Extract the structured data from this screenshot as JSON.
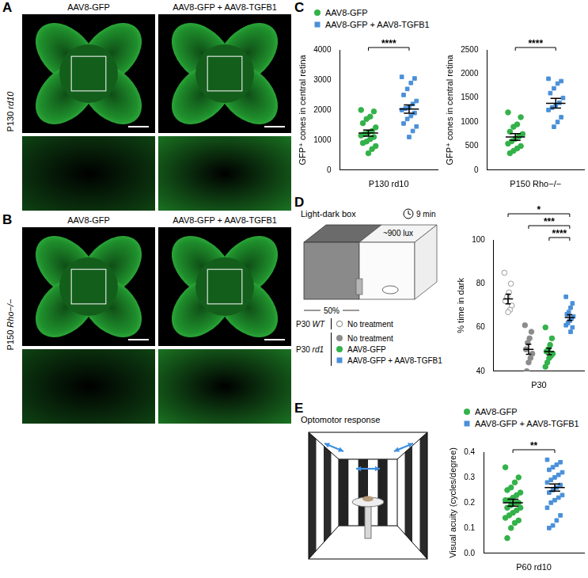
{
  "figure": {
    "panel_labels": [
      "A",
      "B",
      "C",
      "D",
      "E"
    ],
    "image_panels": [
      {
        "row_label": "P130 rd10",
        "columns": [
          "AAV8-GFP",
          "AAV8-GFP + AAV8-TGFB1"
        ]
      },
      {
        "row_label": "P150 Rho−/−",
        "columns": [
          "AAV8-GFP",
          "AAV8-GFP + AAV8-TGFB1"
        ]
      }
    ],
    "light_dark_box": {
      "title": "Light-dark box",
      "illuminance": "~900 lux",
      "duration": "9 min",
      "dark_fraction": "50%"
    },
    "optomotor": {
      "title": "Optomotor response"
    }
  },
  "chart_data": [
    {
      "type": "scatter",
      "y_label": "GFP⁺ cones in central retina",
      "x_label": "P130 rd10",
      "ylim": [
        0,
        4000
      ],
      "yticks": [
        0,
        1000,
        2000,
        3000,
        4000
      ],
      "grid": false,
      "tick_labels": "y",
      "legend": "top",
      "series": [
        {
          "name": "AAV8-GFP",
          "color": "#33b24a",
          "marker": "circle",
          "values": [
            2000,
            1950,
            1780,
            1700,
            1560,
            1420,
            1300,
            1250,
            1200,
            1150,
            1100,
            1030,
            950,
            900,
            800,
            700,
            560
          ],
          "mean": 1230,
          "sem": 105
        },
        {
          "name": "AAV8-GFP + AAV8-TGFB1",
          "color": "#4a90d9",
          "marker": "square",
          "values": [
            3100,
            3050,
            2900,
            2700,
            2500,
            2300,
            2200,
            2100,
            2050,
            2000,
            1900,
            1800,
            1700,
            1550,
            1450,
            1300,
            1100
          ],
          "mean": 2030,
          "sem": 140
        }
      ],
      "annotations": [
        {
          "from": 0,
          "to": 1,
          "label": "****"
        }
      ]
    },
    {
      "type": "scatter",
      "y_label": "GFP⁺ cones in central retina",
      "x_label": "P150 Rho−/−",
      "ylim": [
        0,
        2500
      ],
      "yticks": [
        0,
        500,
        1000,
        1500,
        2000,
        2500
      ],
      "grid": false,
      "tick_labels": "y",
      "series": [
        {
          "name": "AAV8-GFP",
          "color": "#33b24a",
          "marker": "circle",
          "values": [
            1200,
            1100,
            950,
            900,
            800,
            750,
            700,
            650,
            600,
            550,
            500,
            450,
            400,
            350
          ],
          "mean": 690,
          "sem": 70
        },
        {
          "name": "AAV8-GFP + AAV8-TGFB1",
          "color": "#4a90d9",
          "marker": "square",
          "values": [
            1900,
            1850,
            1800,
            1700,
            1600,
            1500,
            1400,
            1350,
            1300,
            1250,
            1100,
            1000,
            900
          ],
          "mean": 1390,
          "sem": 100
        }
      ],
      "annotations": [
        {
          "from": 0,
          "to": 1,
          "label": "****"
        }
      ]
    },
    {
      "type": "scatter",
      "y_label": "% time in dark",
      "x_label": "P30",
      "ylim": [
        40,
        100
      ],
      "yticks": [
        40,
        60,
        80,
        100
      ],
      "grid": false,
      "tick_labels": "y",
      "legend": "left",
      "series": [
        {
          "group": "P30 WT",
          "name": "No treatment",
          "color": "#9a9a9a",
          "marker": "open_circle",
          "values": [
            85,
            80,
            76,
            74,
            72,
            70,
            68,
            67
          ],
          "mean": 73,
          "sem": 2.2
        },
        {
          "group": "P30 rd1",
          "name": "No treatment",
          "color": "#8c8c8c",
          "marker": "circle",
          "values": [
            61,
            58,
            55,
            53,
            50,
            48,
            46,
            44,
            40
          ],
          "mean": 50,
          "sem": 2.3
        },
        {
          "group": "P30 rd1",
          "name": "AAV8-GFP",
          "color": "#33b24a",
          "marker": "circle",
          "values": [
            60,
            55,
            52,
            50,
            49,
            48,
            47,
            46,
            44,
            42
          ],
          "mean": 49,
          "sem": 1.5
        },
        {
          "group": "P30 rd1",
          "name": "AAV8-GFP + AAV8-TGFB1",
          "color": "#4a90d9",
          "marker": "square",
          "values": [
            74,
            71,
            69,
            67,
            66,
            65,
            64,
            63,
            62,
            61,
            60,
            58
          ],
          "mean": 64.5,
          "sem": 1.3
        }
      ],
      "annotations": [
        {
          "from": 0,
          "to": 3,
          "label": "*"
        },
        {
          "from": 1,
          "to": 3,
          "label": "***"
        },
        {
          "from": 2,
          "to": 3,
          "label": "****"
        }
      ]
    },
    {
      "type": "scatter",
      "y_label": "Visual acuity (cycles/degree)",
      "x_label": "P60 rd10",
      "ylim": [
        0,
        0.4
      ],
      "yticks": [
        {
          "value": 0,
          "label": "0.0"
        },
        0.1,
        0.2,
        0.3,
        0.4
      ],
      "grid": false,
      "tick_labels": "y",
      "legend": "top",
      "series": [
        {
          "name": "AAV8-GFP",
          "color": "#33b24a",
          "marker": "circle",
          "values": [
            0.34,
            0.3,
            0.28,
            0.26,
            0.25,
            0.24,
            0.23,
            0.22,
            0.21,
            0.21,
            0.2,
            0.2,
            0.19,
            0.18,
            0.18,
            0.17,
            0.16,
            0.15,
            0.14,
            0.13,
            0.12,
            0.1,
            0.06
          ],
          "mean": 0.2,
          "sem": 0.014
        },
        {
          "name": "AAV8-GFP + AAV8-TGFB1",
          "color": "#4a90d9",
          "marker": "square",
          "values": [
            0.37,
            0.36,
            0.35,
            0.34,
            0.33,
            0.32,
            0.31,
            0.3,
            0.29,
            0.28,
            0.27,
            0.26,
            0.25,
            0.24,
            0.23,
            0.22,
            0.21,
            0.2,
            0.18,
            0.15,
            0.13,
            0.11,
            0.1
          ],
          "mean": 0.26,
          "sem": 0.014
        }
      ],
      "annotations": [
        {
          "from": 0,
          "to": 1,
          "label": "**"
        }
      ]
    }
  ]
}
